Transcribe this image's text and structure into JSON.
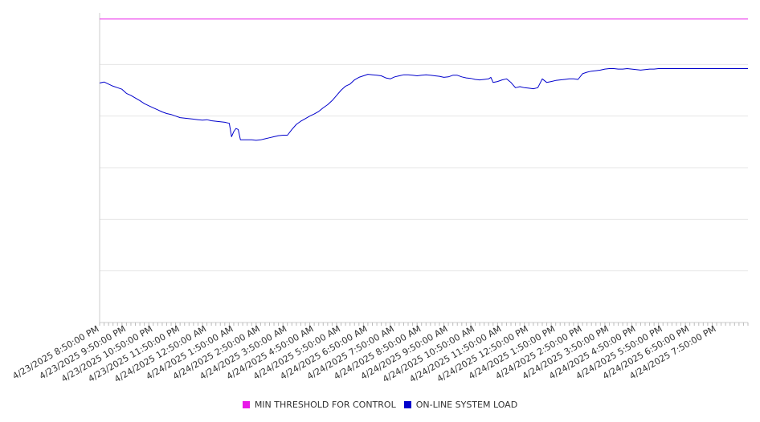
{
  "chart_data": {
    "type": "line",
    "title": "",
    "xlabel": "",
    "ylabel": "",
    "x_ticks": [
      "4/23/2025 8:50:00 PM",
      "4/23/2025 9:50:00 PM",
      "4/23/2025 10:50:00 PM",
      "4/23/2025 11:50:00 PM",
      "4/24/2025 12:50:00 AM",
      "4/24/2025 1:50:00 AM",
      "4/24/2025 2:50:00 AM",
      "4/24/2025 3:50:00 AM",
      "4/24/2025 4:50:00 AM",
      "4/24/2025 5:50:00 AM",
      "4/24/2025 6:50:00 AM",
      "4/24/2025 7:50:00 AM",
      "4/24/2025 8:50:00 AM",
      "4/24/2025 9:50:00 AM",
      "4/24/2025 10:50:00 AM",
      "4/24/2025 11:50:00 AM",
      "4/24/2025 12:50:00 PM",
      "4/24/2025 1:50:00 PM",
      "4/24/2025 2:50:00 PM",
      "4/24/2025 3:50:00 PM",
      "4/24/2025 4:50:00 PM",
      "4/24/2025 5:50:00 PM",
      "4/24/2025 6:50:00 PM",
      "4/24/2025 7:50:00 PM"
    ],
    "x_range": [
      "4/23/2025 8:50:00 PM",
      "4/24/2025 9:00:00 PM"
    ],
    "y_range": [
      0,
      6
    ],
    "y_gridlines": [
      1,
      2,
      3,
      4,
      5
    ],
    "grid": true,
    "legend_position": "bottom-center",
    "series": [
      {
        "name": "MIN THRESHOLD FOR CONTROL",
        "color": "#e81ae8",
        "style": "constant",
        "points": [
          [
            "4/23/2025 8:50:00 PM",
            5.88
          ],
          [
            "4/24/2025 9:00:00 PM",
            5.88
          ]
        ]
      },
      {
        "name": "ON-LINE SYSTEM LOAD",
        "color": "#0000cc",
        "points": [
          [
            "4/23/2025 8:50:00 PM",
            4.64
          ],
          [
            "4/23/2025 9:00:00 PM",
            4.66
          ],
          [
            "4/23/2025 9:10:00 PM",
            4.62
          ],
          [
            "4/23/2025 9:20:00 PM",
            4.58
          ],
          [
            "4/23/2025 9:30:00 PM",
            4.55
          ],
          [
            "4/23/2025 9:40:00 PM",
            4.52
          ],
          [
            "4/23/2025 9:50:00 PM",
            4.44
          ],
          [
            "4/23/2025 10:00:00 PM",
            4.4
          ],
          [
            "4/23/2025 10:10:00 PM",
            4.35
          ],
          [
            "4/23/2025 10:20:00 PM",
            4.3
          ],
          [
            "4/23/2025 10:30:00 PM",
            4.24
          ],
          [
            "4/23/2025 10:40:00 PM",
            4.2
          ],
          [
            "4/23/2025 10:50:00 PM",
            4.16
          ],
          [
            "4/23/2025 11:00:00 PM",
            4.12
          ],
          [
            "4/23/2025 11:10:00 PM",
            4.08
          ],
          [
            "4/23/2025 11:20:00 PM",
            4.05
          ],
          [
            "4/23/2025 11:30:00 PM",
            4.03
          ],
          [
            "4/23/2025 11:40:00 PM",
            4.0
          ],
          [
            "4/23/2025 11:50:00 PM",
            3.97
          ],
          [
            "4/24/2025 12:00:00 AM",
            3.96
          ],
          [
            "4/24/2025 12:10:00 AM",
            3.95
          ],
          [
            "4/24/2025 12:20:00 AM",
            3.94
          ],
          [
            "4/24/2025 12:30:00 AM",
            3.93
          ],
          [
            "4/24/2025 12:40:00 AM",
            3.92
          ],
          [
            "4/24/2025 12:50:00 AM",
            3.93
          ],
          [
            "4/24/2025 1:00:00 AM",
            3.91
          ],
          [
            "4/24/2025 1:10:00 AM",
            3.9
          ],
          [
            "4/24/2025 1:20:00 AM",
            3.89
          ],
          [
            "4/24/2025 1:30:00 AM",
            3.88
          ],
          [
            "4/24/2025 1:40:00 AM",
            3.86
          ],
          [
            "4/24/2025 1:45:00 AM",
            3.6
          ],
          [
            "4/24/2025 1:50:00 AM",
            3.7
          ],
          [
            "4/24/2025 1:55:00 AM",
            3.76
          ],
          [
            "4/24/2025 2:00:00 AM",
            3.74
          ],
          [
            "4/24/2025 2:05:00 AM",
            3.54
          ],
          [
            "4/24/2025 2:20:00 AM",
            3.54
          ],
          [
            "4/24/2025 2:30:00 AM",
            3.54
          ],
          [
            "4/24/2025 2:40:00 AM",
            3.53
          ],
          [
            "4/24/2025 2:50:00 AM",
            3.54
          ],
          [
            "4/24/2025 3:00:00 AM",
            3.56
          ],
          [
            "4/24/2025 3:10:00 AM",
            3.58
          ],
          [
            "4/24/2025 3:20:00 AM",
            3.6
          ],
          [
            "4/24/2025 3:30:00 AM",
            3.62
          ],
          [
            "4/24/2025 3:40:00 AM",
            3.63
          ],
          [
            "4/24/2025 3:50:00 AM",
            3.63
          ],
          [
            "4/24/2025 4:00:00 AM",
            3.74
          ],
          [
            "4/24/2025 4:10:00 AM",
            3.84
          ],
          [
            "4/24/2025 4:20:00 AM",
            3.9
          ],
          [
            "4/24/2025 4:30:00 AM",
            3.95
          ],
          [
            "4/24/2025 4:40:00 AM",
            4.0
          ],
          [
            "4/24/2025 4:50:00 AM",
            4.04
          ],
          [
            "4/24/2025 5:00:00 AM",
            4.09
          ],
          [
            "4/24/2025 5:10:00 AM",
            4.16
          ],
          [
            "4/24/2025 5:20:00 AM",
            4.22
          ],
          [
            "4/24/2025 5:30:00 AM",
            4.3
          ],
          [
            "4/24/2025 5:40:00 AM",
            4.4
          ],
          [
            "4/24/2025 5:50:00 AM",
            4.5
          ],
          [
            "4/24/2025 6:00:00 AM",
            4.58
          ],
          [
            "4/24/2025 6:10:00 AM",
            4.62
          ],
          [
            "4/24/2025 6:20:00 AM",
            4.7
          ],
          [
            "4/24/2025 6:30:00 AM",
            4.75
          ],
          [
            "4/24/2025 6:40:00 AM",
            4.78
          ],
          [
            "4/24/2025 6:50:00 AM",
            4.81
          ],
          [
            "4/24/2025 7:00:00 AM",
            4.8
          ],
          [
            "4/24/2025 7:10:00 AM",
            4.79
          ],
          [
            "4/24/2025 7:20:00 AM",
            4.78
          ],
          [
            "4/24/2025 7:30:00 AM",
            4.74
          ],
          [
            "4/24/2025 7:40:00 AM",
            4.72
          ],
          [
            "4/24/2025 7:50:00 AM",
            4.76
          ],
          [
            "4/24/2025 8:00:00 AM",
            4.78
          ],
          [
            "4/24/2025 8:10:00 AM",
            4.8
          ],
          [
            "4/24/2025 8:20:00 AM",
            4.8
          ],
          [
            "4/24/2025 8:30:00 AM",
            4.79
          ],
          [
            "4/24/2025 8:40:00 AM",
            4.78
          ],
          [
            "4/24/2025 8:50:00 AM",
            4.79
          ],
          [
            "4/24/2025 9:00:00 AM",
            4.8
          ],
          [
            "4/24/2025 9:10:00 AM",
            4.79
          ],
          [
            "4/24/2025 9:20:00 AM",
            4.78
          ],
          [
            "4/24/2025 9:30:00 AM",
            4.77
          ],
          [
            "4/24/2025 9:40:00 AM",
            4.75
          ],
          [
            "4/24/2025 9:50:00 AM",
            4.76
          ],
          [
            "4/24/2025 10:00:00 AM",
            4.79
          ],
          [
            "4/24/2025 10:10:00 AM",
            4.79
          ],
          [
            "4/24/2025 10:20:00 AM",
            4.76
          ],
          [
            "4/24/2025 10:30:00 AM",
            4.74
          ],
          [
            "4/24/2025 10:40:00 AM",
            4.73
          ],
          [
            "4/24/2025 10:50:00 AM",
            4.71
          ],
          [
            "4/24/2025 11:00:00 AM",
            4.7
          ],
          [
            "4/24/2025 11:10:00 AM",
            4.71
          ],
          [
            "4/24/2025 11:20:00 AM",
            4.72
          ],
          [
            "4/24/2025 11:25:00 AM",
            4.75
          ],
          [
            "4/24/2025 11:30:00 AM",
            4.65
          ],
          [
            "4/24/2025 11:40:00 AM",
            4.67
          ],
          [
            "4/24/2025 11:50:00 AM",
            4.7
          ],
          [
            "4/24/2025 12:00:00 PM",
            4.72
          ],
          [
            "4/24/2025 12:10:00 PM",
            4.65
          ],
          [
            "4/24/2025 12:20:00 PM",
            4.55
          ],
          [
            "4/24/2025 12:30:00 PM",
            4.57
          ],
          [
            "4/24/2025 12:40:00 PM",
            4.55
          ],
          [
            "4/24/2025 12:50:00 PM",
            4.54
          ],
          [
            "4/24/2025 1:00:00 PM",
            4.53
          ],
          [
            "4/24/2025 1:10:00 PM",
            4.55
          ],
          [
            "4/24/2025 1:20:00 PM",
            4.72
          ],
          [
            "4/24/2025 1:30:00 PM",
            4.65
          ],
          [
            "4/24/2025 1:40:00 PM",
            4.67
          ],
          [
            "4/24/2025 1:50:00 PM",
            4.69
          ],
          [
            "4/24/2025 2:00:00 PM",
            4.7
          ],
          [
            "4/24/2025 2:10:00 PM",
            4.71
          ],
          [
            "4/24/2025 2:20:00 PM",
            4.72
          ],
          [
            "4/24/2025 2:30:00 PM",
            4.72
          ],
          [
            "4/24/2025 2:40:00 PM",
            4.71
          ],
          [
            "4/24/2025 2:50:00 PM",
            4.82
          ],
          [
            "4/24/2025 3:00:00 PM",
            4.85
          ],
          [
            "4/24/2025 3:10:00 PM",
            4.87
          ],
          [
            "4/24/2025 3:20:00 PM",
            4.88
          ],
          [
            "4/24/2025 3:30:00 PM",
            4.89
          ],
          [
            "4/24/2025 3:40:00 PM",
            4.91
          ],
          [
            "4/24/2025 3:50:00 PM",
            4.92
          ],
          [
            "4/24/2025 4:00:00 PM",
            4.92
          ],
          [
            "4/24/2025 4:10:00 PM",
            4.91
          ],
          [
            "4/24/2025 4:20:00 PM",
            4.91
          ],
          [
            "4/24/2025 4:30:00 PM",
            4.92
          ],
          [
            "4/24/2025 4:40:00 PM",
            4.91
          ],
          [
            "4/24/2025 4:50:00 PM",
            4.9
          ],
          [
            "4/24/2025 5:00:00 PM",
            4.89
          ],
          [
            "4/24/2025 5:10:00 PM",
            4.9
          ],
          [
            "4/24/2025 5:20:00 PM",
            4.91
          ],
          [
            "4/24/2025 5:30:00 PM",
            4.91
          ],
          [
            "4/24/2025 5:40:00 PM",
            4.92
          ],
          [
            "4/24/2025 5:50:00 PM",
            4.92
          ],
          [
            "4/24/2025 6:50:00 PM",
            4.92
          ],
          [
            "4/24/2025 7:50:00 PM",
            4.92
          ],
          [
            "4/24/2025 9:00:00 PM",
            4.92
          ]
        ]
      }
    ]
  }
}
